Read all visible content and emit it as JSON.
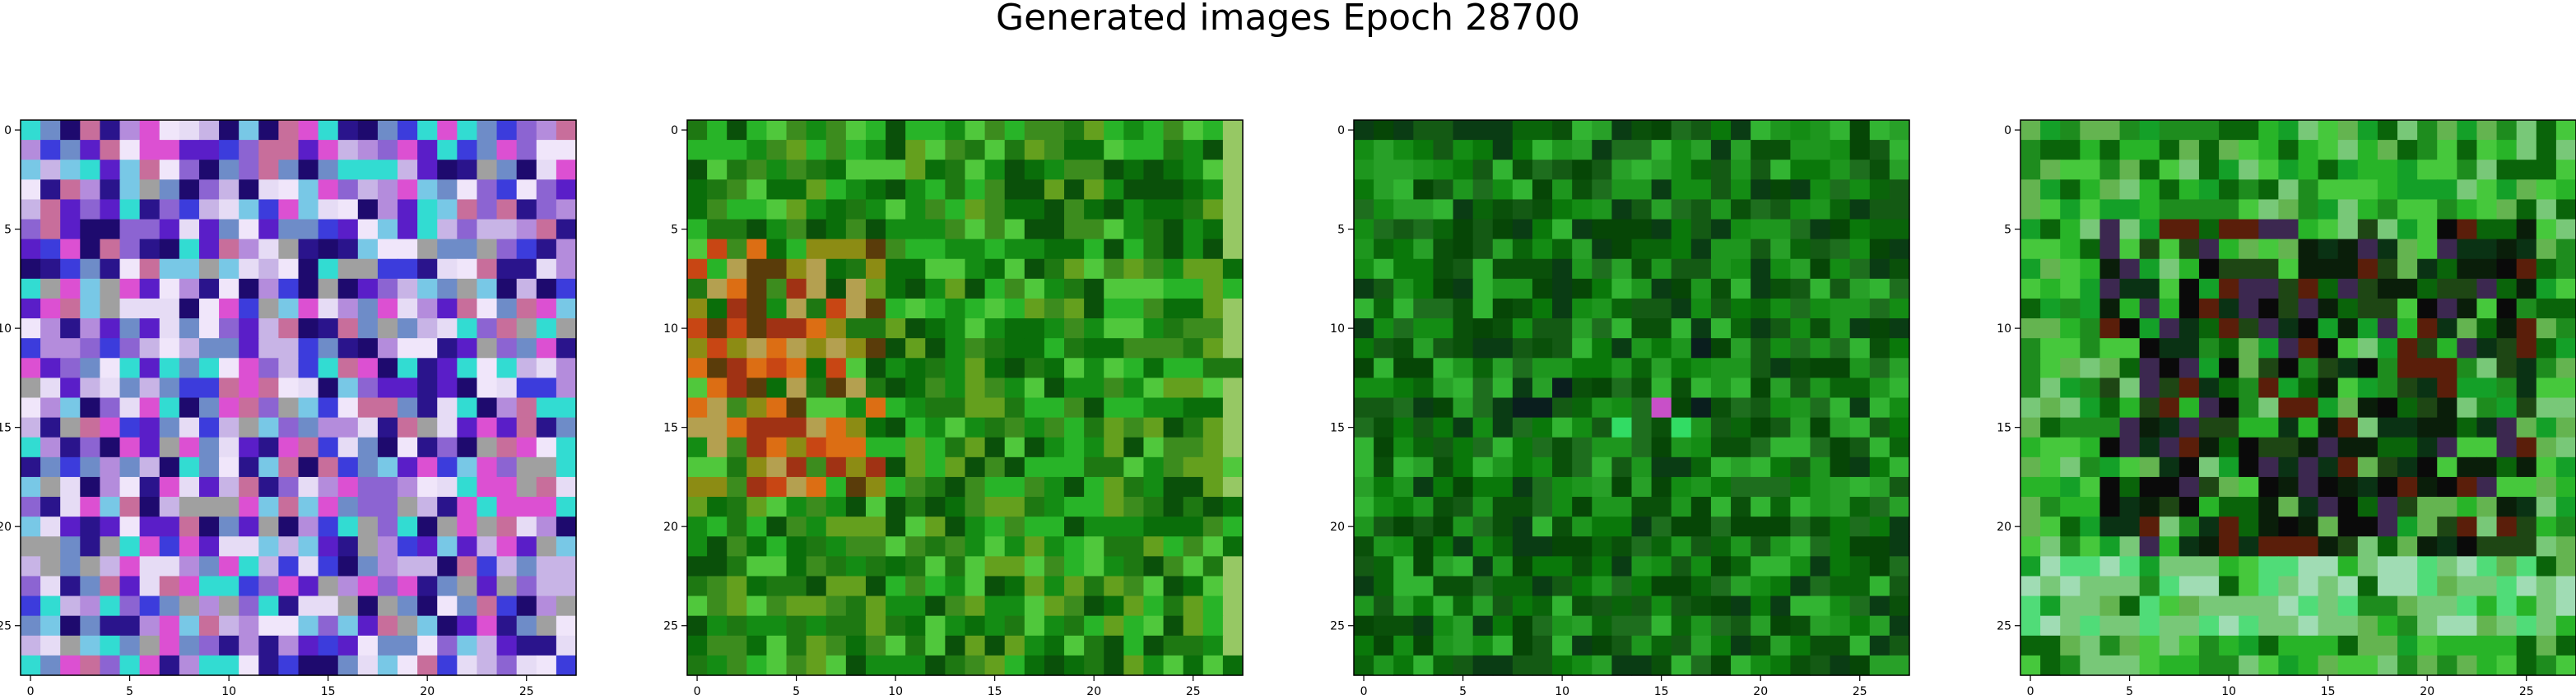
{
  "chart_data": {
    "type": "heatmap",
    "title": "Generated images Epoch 28700",
    "grid": false,
    "panels": [
      {
        "name": "panel-1",
        "rows": 28,
        "cols": 28,
        "xticks": [
          0,
          5,
          10,
          15,
          20,
          25
        ],
        "yticks": [
          0,
          5,
          10,
          15,
          20,
          25
        ],
        "xlim": [
          -0.5,
          27.5
        ],
        "ylim": [
          27.5,
          -0.5
        ],
        "palette": [
          "#c8b4e6",
          "#8c64d2",
          "#5a1ec8",
          "#e6dcf5",
          "#b48cdc",
          "#dc50d2",
          "#3c3cdc",
          "#1e0a6e",
          "#78c8e6",
          "#32dcd2",
          "#c86e9b",
          "#f0e6fa",
          "#2a148c",
          "#a0a0a0",
          "#6e8cc8"
        ],
        "description": "purple / magenta / lavender noise pattern"
      },
      {
        "name": "panel-2",
        "rows": 28,
        "cols": 28,
        "xticks": [
          0,
          5,
          10,
          15,
          20,
          25
        ],
        "yticks": [
          0,
          5,
          10,
          15,
          20,
          25
        ],
        "xlim": [
          -0.5,
          27.5
        ],
        "ylim": [
          27.5,
          -0.5
        ],
        "palette": [
          "#0a6e0a",
          "#148c14",
          "#1e7812",
          "#0a500a",
          "#3c8c1e",
          "#64a01e",
          "#c84614",
          "#dc6e14",
          "#a03214",
          "#8c8c14",
          "#b4a050",
          "#28b428",
          "#50c83c",
          "#96c864",
          "#5a3c0a"
        ],
        "description": "green field with orange-red patch on left"
      },
      {
        "name": "panel-3",
        "rows": 28,
        "cols": 28,
        "xticks": [
          0,
          5,
          10,
          15,
          20,
          25
        ],
        "yticks": [
          0,
          5,
          10,
          15,
          20,
          25
        ],
        "xlim": [
          -0.5,
          27.5
        ],
        "ylim": [
          27.5,
          -0.5
        ],
        "palette": [
          "#0a780a",
          "#148c14",
          "#0a640a",
          "#1e961e",
          "#0a500a",
          "#28a028",
          "#0a3c14",
          "#32b432",
          "#1e6e1e",
          "#145a14",
          "#0a1e1e",
          "#c8c814",
          "#32dc64",
          "#c850c8",
          "#064606"
        ],
        "description": "mostly dark green texture"
      },
      {
        "name": "panel-4",
        "rows": 28,
        "cols": 28,
        "xticks": [
          0,
          5,
          10,
          15,
          20,
          25
        ],
        "yticks": [
          0,
          5,
          10,
          15,
          20,
          25
        ],
        "xlim": [
          -0.5,
          27.5
        ],
        "ylim": [
          27.5,
          -0.5
        ],
        "palette": [
          "#14a028",
          "#28b428",
          "#0a1e0a",
          "#0a3214",
          "#46c83c",
          "#0a640a",
          "#50dc78",
          "#a0dcb4",
          "#1e8c1e",
          "#3c2850",
          "#64b450",
          "#0a0a0a",
          "#1e4614",
          "#78c878",
          "#5a1e0a"
        ],
        "description": "green border with dark center square and light band near bottom"
      }
    ]
  }
}
